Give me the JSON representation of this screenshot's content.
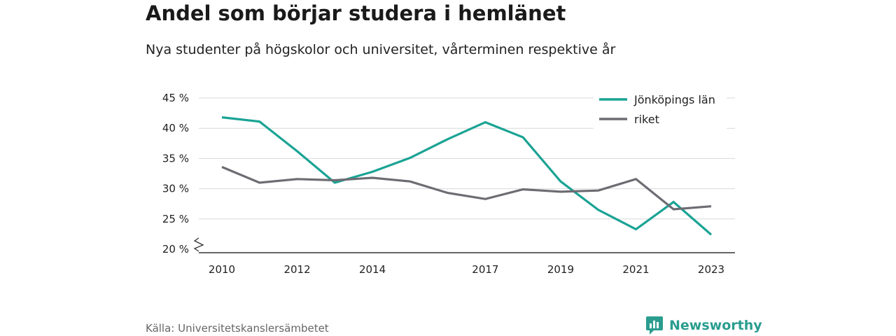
{
  "title": "Andel som börjar studera i hemlänet",
  "subtitle": "Nya studenter på högskolor och universitet, vårterminen respektive år",
  "source": "Källa: Universitetskanslersämbetet",
  "brand": "Newsworthy",
  "colors": {
    "jonkoping": "#1aa394",
    "riket": "#6e6c73",
    "grid": "#d9d9d9",
    "axis": "#333333",
    "brand": "#2a9d8f"
  },
  "chart_data": {
    "type": "line",
    "x": [
      2010,
      2011,
      2012,
      2013,
      2014,
      2015,
      2016,
      2017,
      2018,
      2019,
      2020,
      2021,
      2022,
      2023
    ],
    "x_ticks": [
      2010,
      2012,
      2014,
      2017,
      2019,
      2021,
      2023
    ],
    "y_ticks": [
      20,
      25,
      30,
      35,
      40,
      45
    ],
    "y_tick_labels": [
      "20 %",
      "25 %",
      "30 %",
      "35 %",
      "40 %",
      "45 %"
    ],
    "ylim": [
      20,
      45
    ],
    "xlim": [
      2010,
      2023
    ],
    "axis_break": true,
    "grid": true,
    "legend_position": "top-right",
    "series": [
      {
        "name": "Jönköpings län",
        "color_key": "jonkoping",
        "values": [
          41.8,
          41.1,
          36.2,
          31.0,
          32.8,
          35.1,
          38.2,
          41.0,
          38.5,
          31.2,
          26.5,
          23.3,
          27.8,
          22.4
        ]
      },
      {
        "name": "riket",
        "color_key": "riket",
        "values": [
          33.6,
          31.0,
          31.6,
          31.4,
          31.8,
          31.2,
          29.3,
          28.3,
          29.9,
          29.5,
          29.7,
          31.6,
          26.6,
          27.1
        ]
      }
    ]
  }
}
